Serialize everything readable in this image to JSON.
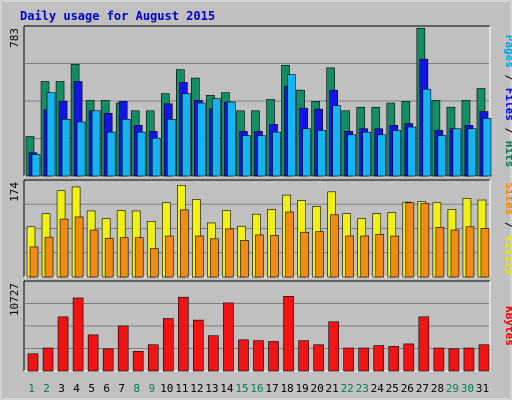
{
  "chart_data": {
    "type": "bar",
    "title": "Daily usage for August 2015",
    "categories": [
      "1",
      "2",
      "3",
      "4",
      "5",
      "6",
      "7",
      "8",
      "9",
      "10",
      "11",
      "12",
      "13",
      "14",
      "15",
      "16",
      "17",
      "18",
      "19",
      "20",
      "21",
      "22",
      "23",
      "24",
      "25",
      "26",
      "27",
      "28",
      "29",
      "30",
      "31"
    ],
    "weekend_days": [
      "1",
      "2",
      "8",
      "9",
      "15",
      "16",
      "22",
      "23",
      "29",
      "30"
    ],
    "panels": [
      {
        "id": "hits",
        "axis_max_label": "783",
        "ylim": [
          0,
          783
        ],
        "right_label": [
          {
            "text": "Pages",
            "color": "#00a8e8"
          },
          {
            "text": " / ",
            "color": "#000000"
          },
          {
            "text": "Files",
            "color": "#0000ff"
          },
          {
            "text": " / ",
            "color": "#000000"
          },
          {
            "text": "Hits",
            "color": "#007850"
          }
        ],
        "series": [
          {
            "name": "Hits",
            "color": "#148c64",
            "values": [
              209,
              500,
              500,
              591,
              400,
              400,
              386,
              345,
              345,
              436,
              563,
              518,
              427,
              441,
              345,
              345,
              405,
              586,
              454,
              395,
              572,
              345,
              364,
              364,
              386,
              395,
              782,
              400,
              364,
              400,
              463
            ]
          },
          {
            "name": "Files",
            "color": "#1414e6",
            "values": [
              123,
              350,
              395,
              500,
              345,
              332,
              395,
              268,
              236,
              382,
              495,
              400,
              355,
              391,
              236,
              236,
              273,
              473,
              359,
              354,
              454,
              236,
              250,
              250,
              268,
              277,
              618,
              241,
              250,
              268,
              341
            ]
          },
          {
            "name": "Pages",
            "color": "#14b4f0",
            "values": [
              114,
              441,
              300,
              286,
              345,
              232,
              300,
              232,
              200,
              300,
              436,
              386,
              409,
              391,
              214,
              214,
              232,
              536,
              250,
              241,
              372,
              218,
              232,
              218,
              241,
              259,
              459,
              214,
              250,
              250,
              305
            ]
          }
        ]
      },
      {
        "id": "visits",
        "axis_max_label": "174",
        "ylim": [
          0,
          174
        ],
        "right_label": [
          {
            "text": "Sites",
            "color": "#ff8c00"
          },
          {
            "text": " / ",
            "color": "#000000"
          },
          {
            "text": "Visits",
            "color": "#e6e600"
          }
        ],
        "series": [
          {
            "name": "Visits",
            "color": "#f0f014",
            "values": [
              92,
              116,
              158,
              165,
              121,
              107,
              122,
              121,
              102,
              136,
              168,
              142,
              99,
              122,
              93,
              115,
              124,
              150,
              140,
              129,
              156,
              116,
              107,
              116,
              118,
              137,
              138,
              136,
              124,
              144,
              141
            ]
          },
          {
            "name": "Sites",
            "color": "#f08c14",
            "values": [
              55,
              73,
              106,
              110,
              86,
              71,
              72,
              72,
              52,
              75,
              123,
              75,
              70,
              88,
              67,
              77,
              76,
              119,
              82,
              83,
              114,
              75,
              75,
              78,
              75,
              136,
              135,
              91,
              86,
              92,
              89
            ]
          }
        ]
      },
      {
        "id": "kbytes",
        "axis_max_label": "10727",
        "ylim": [
          0,
          10727
        ],
        "right_label": [
          {
            "text": "KBytes",
            "color": "#ff0000"
          }
        ],
        "series": [
          {
            "name": "KBytes",
            "color": "#f01414",
            "values": [
              2100,
              2800,
              6600,
              8900,
              4400,
              2700,
              5500,
              2400,
              3200,
              6400,
              9000,
              6200,
              4300,
              8300,
              3800,
              3700,
              3600,
              9100,
              3700,
              3200,
              6000,
              2800,
              2800,
              3100,
              3000,
              3300,
              6600,
              2800,
              2700,
              2800,
              3200
            ]
          }
        ]
      }
    ]
  }
}
